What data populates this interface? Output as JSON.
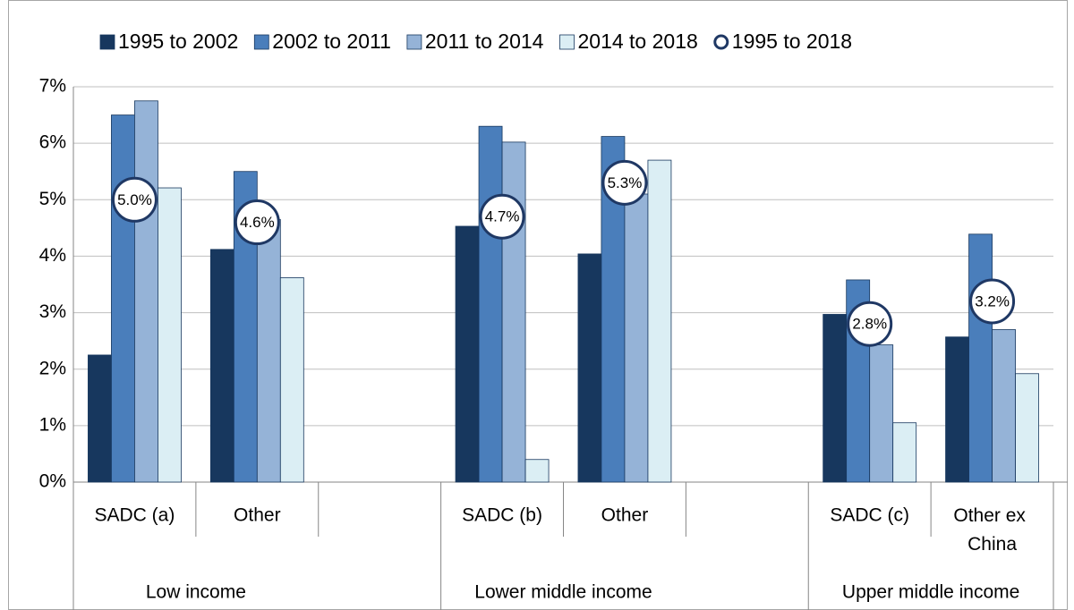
{
  "chart_data": {
    "type": "bar",
    "categories": [
      "SADC (a)",
      "Other",
      null,
      "SADC (b)",
      "Other",
      null,
      "SADC (c)",
      "Other ex China"
    ],
    "groups": [
      "Low income",
      "Lower middle income",
      "Upper middle income"
    ],
    "series": [
      {
        "name": "1995 to 2002",
        "color": "#17375e",
        "values": [
          2.25,
          4.12,
          null,
          4.53,
          4.04,
          null,
          2.97,
          2.57
        ]
      },
      {
        "name": "2002 to 2011",
        "color": "#4a7ebb",
        "values": [
          6.5,
          5.5,
          null,
          6.3,
          6.12,
          null,
          3.58,
          4.39
        ]
      },
      {
        "name": "2011 to 2014",
        "color": "#95b3d7",
        "values": [
          6.75,
          4.65,
          null,
          6.02,
          5.1,
          null,
          2.43,
          2.7
        ]
      },
      {
        "name": "2014 to 2018",
        "color": "#dbeef4",
        "values": [
          5.21,
          3.62,
          null,
          0.4,
          5.7,
          null,
          1.05,
          1.92
        ]
      },
      {
        "name": "1995 to 2018",
        "type": "marker",
        "color": "#1f3864",
        "values": [
          5.0,
          4.6,
          null,
          4.7,
          5.3,
          null,
          2.8,
          3.2
        ],
        "value_labels": [
          "5.0%",
          "4.6%",
          null,
          "4.7%",
          "5.3%",
          null,
          "2.8%",
          "3.2%"
        ]
      }
    ],
    "ylim": [
      0,
      7
    ],
    "yticks": [
      {
        "value": 0,
        "label": "0%"
      },
      {
        "value": 1,
        "label": "1%"
      },
      {
        "value": 2,
        "label": "2%"
      },
      {
        "value": 3,
        "label": "3%"
      },
      {
        "value": 4,
        "label": "4%"
      },
      {
        "value": 5,
        "label": "5%"
      },
      {
        "value": 6,
        "label": "6%"
      },
      {
        "value": 7,
        "label": "7%"
      }
    ],
    "grid": true,
    "legend": "top"
  }
}
